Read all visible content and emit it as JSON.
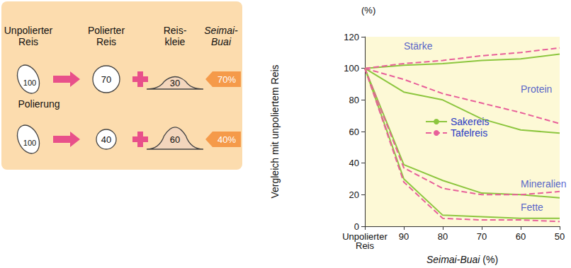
{
  "diagram": {
    "headers": [
      [
        "Unpolierter",
        "Reis"
      ],
      [
        "Polierter",
        "Reis"
      ],
      [
        "Reis-",
        "kleie"
      ],
      [
        "Seimai-",
        "Buai"
      ]
    ],
    "process_label": "Polierung",
    "rows": [
      {
        "unpolished": "100",
        "polished": "70",
        "bran": "30",
        "seimai_buai": "70%"
      },
      {
        "unpolished": "100",
        "polished": "40",
        "bran": "60",
        "seimai_buai": "40%"
      }
    ]
  },
  "chart_data": {
    "type": "line",
    "y_unit": "(%)",
    "ylabel": "Vergleich mit unpoliertem Reis",
    "xlabel": "Seimai-Buai (%)",
    "categories": [
      "Unpolierter Reis",
      "90",
      "80",
      "70",
      "60",
      "50"
    ],
    "ylim": [
      0,
      120
    ],
    "yticks": [
      0,
      20,
      40,
      60,
      80,
      100,
      120
    ],
    "grid": false,
    "legend": "center",
    "series": [
      {
        "name": "Sakereis",
        "color": "#8dc63f",
        "line_style": "solid",
        "values": [
          100,
          102,
          103,
          105,
          106,
          109
        ]
      },
      {
        "name": "Tafelreis",
        "color": "#e8609a",
        "line_style": "dashed",
        "values": [
          100,
          103,
          105,
          108,
          110,
          113
        ]
      },
      {
        "name": "Sakereis",
        "color": "#8dc63f",
        "line_style": "solid",
        "values": [
          100,
          85,
          80,
          68,
          61,
          59
        ]
      },
      {
        "name": "Tafelreis",
        "color": "#e8609a",
        "line_style": "dashed",
        "values": [
          100,
          93,
          84,
          78,
          72,
          65
        ]
      },
      {
        "name": "Sakereis",
        "color": "#8dc63f",
        "line_style": "solid",
        "values": [
          100,
          39,
          29,
          21,
          20,
          18
        ]
      },
      {
        "name": "Tafelreis",
        "color": "#e8609a",
        "line_style": "dashed",
        "values": [
          100,
          37,
          24,
          20,
          20,
          22
        ]
      },
      {
        "name": "Sakereis",
        "color": "#8dc63f",
        "line_style": "solid",
        "values": [
          100,
          30,
          7,
          6,
          5,
          5
        ]
      },
      {
        "name": "Tafelreis",
        "color": "#e8609a",
        "line_style": "dashed",
        "values": [
          100,
          28,
          5,
          4,
          4,
          3
        ]
      }
    ],
    "annotations": [
      {
        "text": "Stärke",
        "x": "90",
        "y": 114
      },
      {
        "text": "Protein",
        "x": "60",
        "y": 87
      },
      {
        "text": "Mineralien",
        "x": "60",
        "y": 27
      },
      {
        "text": "Fette",
        "x": "60",
        "y": 12
      }
    ]
  }
}
